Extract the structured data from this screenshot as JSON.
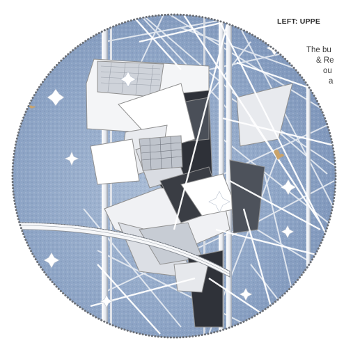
{
  "caption": {
    "title": "LEFT: UPPE",
    "lines": [
      "The bu",
      "& Re",
      "ou",
      "a"
    ]
  },
  "colors": {
    "sky": "#8ea5c6",
    "sky_dark": "#6f88ae",
    "structure": "#f2f4f7",
    "outline": "#8f8f8f",
    "dark_glass": "#2e3138",
    "bird": "#c9a36a"
  }
}
